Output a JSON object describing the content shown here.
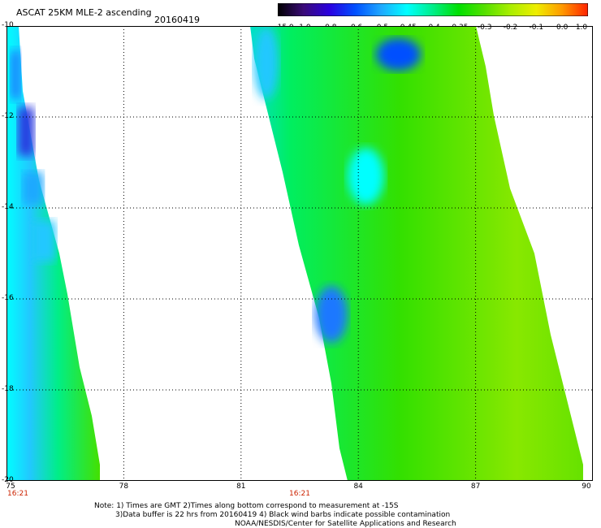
{
  "header": {
    "title": "ASCAT 25KM MLE-2 ascending",
    "date": "20160419"
  },
  "colorbar": {
    "labels": [
      "-15.0",
      "-1.0",
      "-0.8",
      "-0.6",
      "-0.5",
      "-0.45",
      "-0.4",
      "-0.35",
      "-0.3",
      "-0.2",
      "-0.1",
      "0.0",
      "1.0"
    ],
    "colors": [
      "#000000",
      "#3a0a78",
      "#2a00e0",
      "#0050ff",
      "#1ea8ff",
      "#00ffff",
      "#00ee88",
      "#00e000",
      "#55e000",
      "#aaee00",
      "#eeee00",
      "#ff9900",
      "#ff2200"
    ]
  },
  "map": {
    "lon_range": [
      75,
      90
    ],
    "lat_range": [
      -10,
      -20
    ],
    "x_ticks": [
      "75",
      "78",
      "81",
      "84",
      "87",
      "90"
    ],
    "y_ticks": [
      "-10",
      "-12",
      "-14",
      "-16",
      "-18",
      "-20"
    ],
    "time_labels": [
      {
        "lon": 75,
        "text": "16:21"
      },
      {
        "lon": 82.5,
        "text": "16:21"
      }
    ]
  },
  "footer": {
    "note1": "Note: 1) Times are GMT 2)Times along bottom correspond to measurement at -15S",
    "note2": "3)Data buffer is 22 hrs from 20160419 4) Black wind barbs indicate possible contamination",
    "credit": "NOAA/NESDIS/Center for Satellite Applications and Research"
  }
}
